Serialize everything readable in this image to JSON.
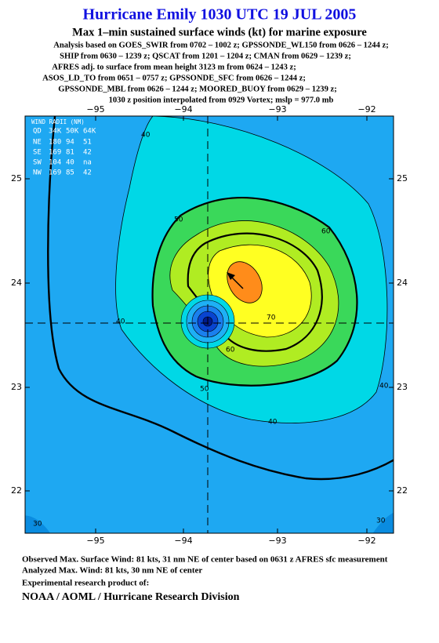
{
  "header": {
    "title": "Hurricane Emily 1030 UTC 19 JUL 2005",
    "subtitle": "Max 1–min sustained surface winds (kt) for marine exposure",
    "analysis_lines": [
      "Analysis based on  GOES_SWIR from 0702 – 1002 z;  GPSSONDE_WL150 from 0626 – 1244 z;",
      "SHIP from 0630 – 1239 z;  QSCAT from 1201 – 1204 z;  CMAN from 0629 – 1239 z;",
      "AFRES adj. to surface from mean height 3123 m from 0624 – 1243 z;",
      "ASOS_LD_TO from 0651 – 0757 z;  GPSSONDE_SFC from 0626 – 1244 z;",
      "GPSSONDE_MBL from 0626 – 1244 z;  MOORED_BUOY from 0629 – 1239 z;",
      "1030 z position interpolated from 0929 Vortex; mslp = 977.0 mb"
    ]
  },
  "map": {
    "lon_labels": [
      "−95",
      "−94",
      "−93",
      "−92"
    ],
    "lat_labels": [
      "25",
      "24",
      "23",
      "22"
    ],
    "wind_radii": {
      "title": "WIND RADII (NM)",
      "header": [
        "QD",
        "34K",
        "50K",
        "64K"
      ],
      "rows": [
        [
          "NE",
          "180",
          "94",
          "51"
        ],
        [
          "SE",
          "169",
          "81",
          "42"
        ],
        [
          "SW",
          "104",
          "40",
          "na"
        ],
        [
          "NW",
          "169",
          "85",
          "42"
        ]
      ]
    },
    "contour_labels": [
      "40",
      "50",
      "60",
      "40",
      "40",
      "50",
      "40",
      "60",
      "70",
      "30",
      "30"
    ]
  },
  "footer": {
    "lines": [
      "Observed Max. Surface Wind: 81 kts, 31 nm NE of center based on 0631 z AFRES sfc measurement",
      "Analyzed Max. Wind: 81 kts, 30 nm NE of center",
      "Experimental research product of:"
    ],
    "organization": "NOAA / AOML / Hurricane Research Division"
  }
}
